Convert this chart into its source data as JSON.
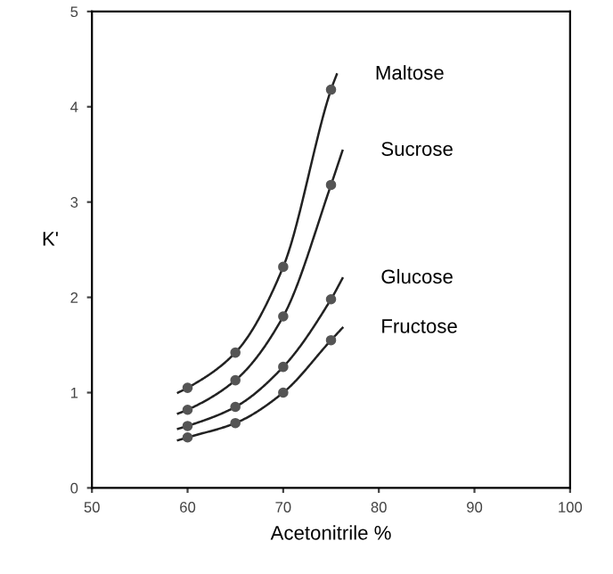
{
  "chart_data": {
    "type": "scatter",
    "xlabel": "Acetonitrile %",
    "ylabel": "K'",
    "xlim": [
      50,
      100
    ],
    "ylim": [
      0,
      5
    ],
    "xticks": [
      50,
      60,
      70,
      80,
      90,
      100
    ],
    "yticks": [
      0,
      1,
      2,
      3,
      4,
      5
    ],
    "grid": false,
    "legend": false,
    "marker": "circle",
    "series": [
      {
        "color": "#555555",
        "x": [
          60,
          65,
          70,
          75
        ],
        "values": [
          1.05,
          1.42,
          2.32,
          4.18
        ]
      },
      {
        "color": "#555555",
        "x": [
          60,
          65,
          70,
          75
        ],
        "values": [
          0.82,
          1.13,
          1.8,
          3.18
        ]
      },
      {
        "color": "#555555",
        "x": [
          60,
          65,
          70,
          75
        ],
        "values": [
          0.65,
          0.85,
          1.27,
          1.98
        ]
      },
      {
        "color": "#555555",
        "x": [
          60,
          65,
          70,
          75
        ],
        "values": [
          0.53,
          0.68,
          1.0,
          1.55
        ]
      },
      {
        "type": "line",
        "name": "Maltose",
        "color": "#222222",
        "marker": "none",
        "line_style": "solid",
        "x": [
          59,
          60,
          65,
          70,
          75,
          75.6
        ],
        "values": [
          1.0,
          1.05,
          1.42,
          2.32,
          4.18,
          4.34
        ]
      },
      {
        "type": "line",
        "name": "Sucrose",
        "color": "#222222",
        "marker": "none",
        "line_style": "solid",
        "x": [
          59,
          60,
          65,
          70,
          75,
          76.2
        ],
        "values": [
          0.78,
          0.82,
          1.13,
          1.8,
          3.18,
          3.54
        ]
      },
      {
        "type": "line",
        "name": "Glucose",
        "color": "#222222",
        "marker": "none",
        "line_style": "solid",
        "x": [
          59,
          60,
          65,
          70,
          75,
          76.2
        ],
        "values": [
          0.62,
          0.65,
          0.85,
          1.27,
          1.98,
          2.2
        ]
      },
      {
        "type": "line",
        "name": "Fructose",
        "color": "#222222",
        "marker": "none",
        "line_style": "solid",
        "x": [
          59,
          60,
          65,
          70,
          75,
          76.2
        ],
        "values": [
          0.5,
          0.53,
          0.68,
          1.0,
          1.55,
          1.68
        ]
      }
    ]
  }
}
